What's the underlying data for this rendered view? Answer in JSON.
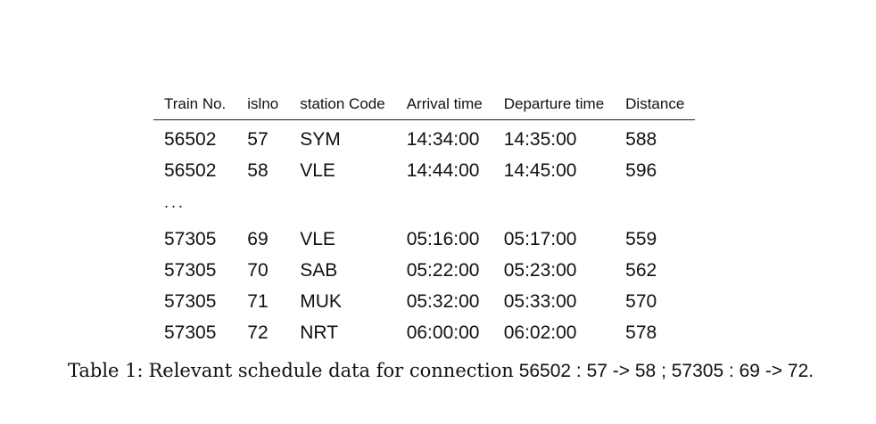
{
  "table": {
    "headers": [
      "Train No.",
      "islno",
      "station Code",
      "Arrival time",
      "Departure time",
      "Distance"
    ],
    "rows_a": [
      [
        "56502",
        "57",
        "SYM",
        "14:34:00",
        "14:35:00",
        "588"
      ],
      [
        "56502",
        "58",
        "VLE",
        "14:44:00",
        "14:45:00",
        "596"
      ]
    ],
    "ellipsis": "...",
    "rows_b": [
      [
        "57305",
        "69",
        "VLE",
        "05:16:00",
        "05:17:00",
        "559"
      ],
      [
        "57305",
        "70",
        "SAB",
        "05:22:00",
        "05:23:00",
        "562"
      ],
      [
        "57305",
        "71",
        "MUK",
        "05:32:00",
        "05:33:00",
        "570"
      ],
      [
        "57305",
        "72",
        "NRT",
        "06:00:00",
        "06:02:00",
        "578"
      ]
    ]
  },
  "caption": {
    "label": "Table 1:",
    "text": "Relevant schedule data for connection",
    "connections": "56502 : 57 -> 58 ; 57305 : 69 -> 72."
  }
}
